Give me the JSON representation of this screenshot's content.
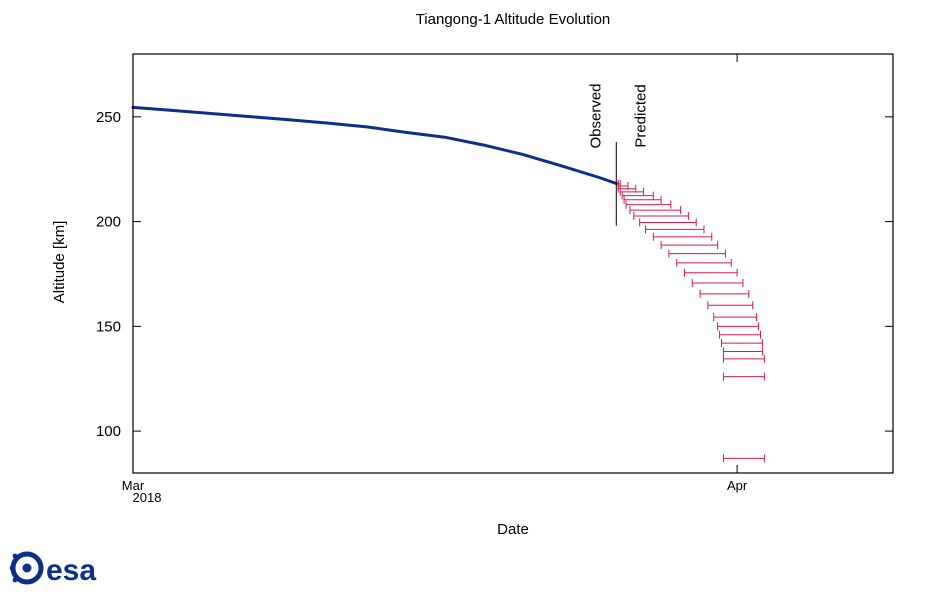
{
  "chart_data": {
    "type": "line",
    "title": "Tiangong-1 Altitude Evolution",
    "xlabel": "Date",
    "ylabel": "Altitude [km]",
    "x_range": [
      "2018-03-01",
      "2018-04-09"
    ],
    "ylim": [
      80,
      280
    ],
    "x_ticks": [
      {
        "date": "2018-03-01",
        "label": "Mar",
        "sublabel": "2018"
      },
      {
        "date": "2018-04-01",
        "label": "Apr",
        "sublabel": ""
      }
    ],
    "y_ticks": [
      100,
      150,
      200,
      250
    ],
    "grid": false,
    "series": [
      {
        "kind": "observed",
        "color": "#0d2f8c",
        "points": [
          {
            "x": "2018-03-01",
            "y": 254.5
          },
          {
            "x": "2018-03-03",
            "y": 253.1
          },
          {
            "x": "2018-03-05",
            "y": 251.6
          },
          {
            "x": "2018-03-07",
            "y": 250.1
          },
          {
            "x": "2018-03-09",
            "y": 248.6
          },
          {
            "x": "2018-03-11",
            "y": 247.0
          },
          {
            "x": "2018-03-13",
            "y": 245.2
          },
          {
            "x": "2018-03-15",
            "y": 242.6
          },
          {
            "x": "2018-03-17",
            "y": 240.3
          },
          {
            "x": "2018-03-19",
            "y": 236.5
          },
          {
            "x": "2018-03-21",
            "y": 232.1
          },
          {
            "x": "2018-03-23",
            "y": 226.6
          },
          {
            "x": "2018-03-25",
            "y": 220.8
          },
          {
            "x": "2018-03-25.8",
            "y": 218.2
          }
        ]
      },
      {
        "kind": "predicted",
        "color": "#d81b4f",
        "errorbars": [
          {
            "y": 218.0,
            "x_min": "2018-03-25.9",
            "x_max": "2018-03-26.0"
          },
          {
            "y": 217.0,
            "x_min": "2018-03-25.9",
            "x_max": "2018-03-26.4"
          },
          {
            "y": 215.7,
            "x_min": "2018-03-25.9",
            "x_max": "2018-03-26.8"
          },
          {
            "y": 214.2,
            "x_min": "2018-03-26.0",
            "x_max": "2018-03-27.2"
          },
          {
            "y": 212.4,
            "x_min": "2018-03-26.1",
            "x_max": "2018-03-27.7"
          },
          {
            "y": 210.4,
            "x_min": "2018-03-26.2",
            "x_max": "2018-03-28.1"
          },
          {
            "y": 208.1,
            "x_min": "2018-03-26.3",
            "x_max": "2018-03-28.6"
          },
          {
            "y": 205.5,
            "x_min": "2018-03-26.5",
            "x_max": "2018-03-29.1"
          },
          {
            "y": 202.7,
            "x_min": "2018-03-26.7",
            "x_max": "2018-03-29.5"
          },
          {
            "y": 199.6,
            "x_min": "2018-03-27.0",
            "x_max": "2018-03-29.9"
          },
          {
            "y": 196.3,
            "x_min": "2018-03-27.3",
            "x_max": "2018-03-30.3"
          },
          {
            "y": 192.7,
            "x_min": "2018-03-27.7",
            "x_max": "2018-03-30.7"
          },
          {
            "y": 188.8,
            "x_min": "2018-03-28.1",
            "x_max": "2018-03-31.0"
          },
          {
            "y": 184.7,
            "x_min": "2018-03-28.5",
            "x_max": "2018-03-31.4"
          },
          {
            "y": 180.3,
            "x_min": "2018-03-28.9",
            "x_max": "2018-03-31.7"
          },
          {
            "y": 175.6,
            "x_min": "2018-03-29.3",
            "x_max": "2018-04-01.0"
          },
          {
            "y": 170.7,
            "x_min": "2018-03-29.7",
            "x_max": "2018-04-01.3"
          },
          {
            "y": 165.5,
            "x_min": "2018-03-30.1",
            "x_max": "2018-04-01.6"
          },
          {
            "y": 160.1,
            "x_min": "2018-03-30.5",
            "x_max": "2018-04-01.8"
          },
          {
            "y": 154.4,
            "x_min": "2018-03-30.8",
            "x_max": "2018-04-02.0"
          },
          {
            "y": 150.0,
            "x_min": "2018-03-31.0",
            "x_max": "2018-04-02.1"
          },
          {
            "y": 146.0,
            "x_min": "2018-03-31.1",
            "x_max": "2018-04-02.2"
          },
          {
            "y": 142.0,
            "x_min": "2018-03-31.2",
            "x_max": "2018-04-02.3"
          },
          {
            "y": 138.0,
            "x_min": "2018-03-31.3",
            "x_max": "2018-04-02.3"
          },
          {
            "y": 134.5,
            "x_min": "2018-03-31.3",
            "x_max": "2018-04-02.4"
          },
          {
            "y": 126.0,
            "x_min": "2018-03-31.3",
            "x_max": "2018-04-02.4"
          },
          {
            "y": 87.0,
            "x_min": "2018-03-31.3",
            "x_max": "2018-04-02.4"
          }
        ]
      }
    ],
    "annotations": {
      "divider_date": "2018-03-25.8",
      "divider_y_range": [
        198,
        238
      ],
      "observed_label": "Observed",
      "predicted_label": "Predicted"
    }
  },
  "logo": {
    "text": "esa",
    "color": "#0d2f8c",
    "name": "esa-logo"
  }
}
